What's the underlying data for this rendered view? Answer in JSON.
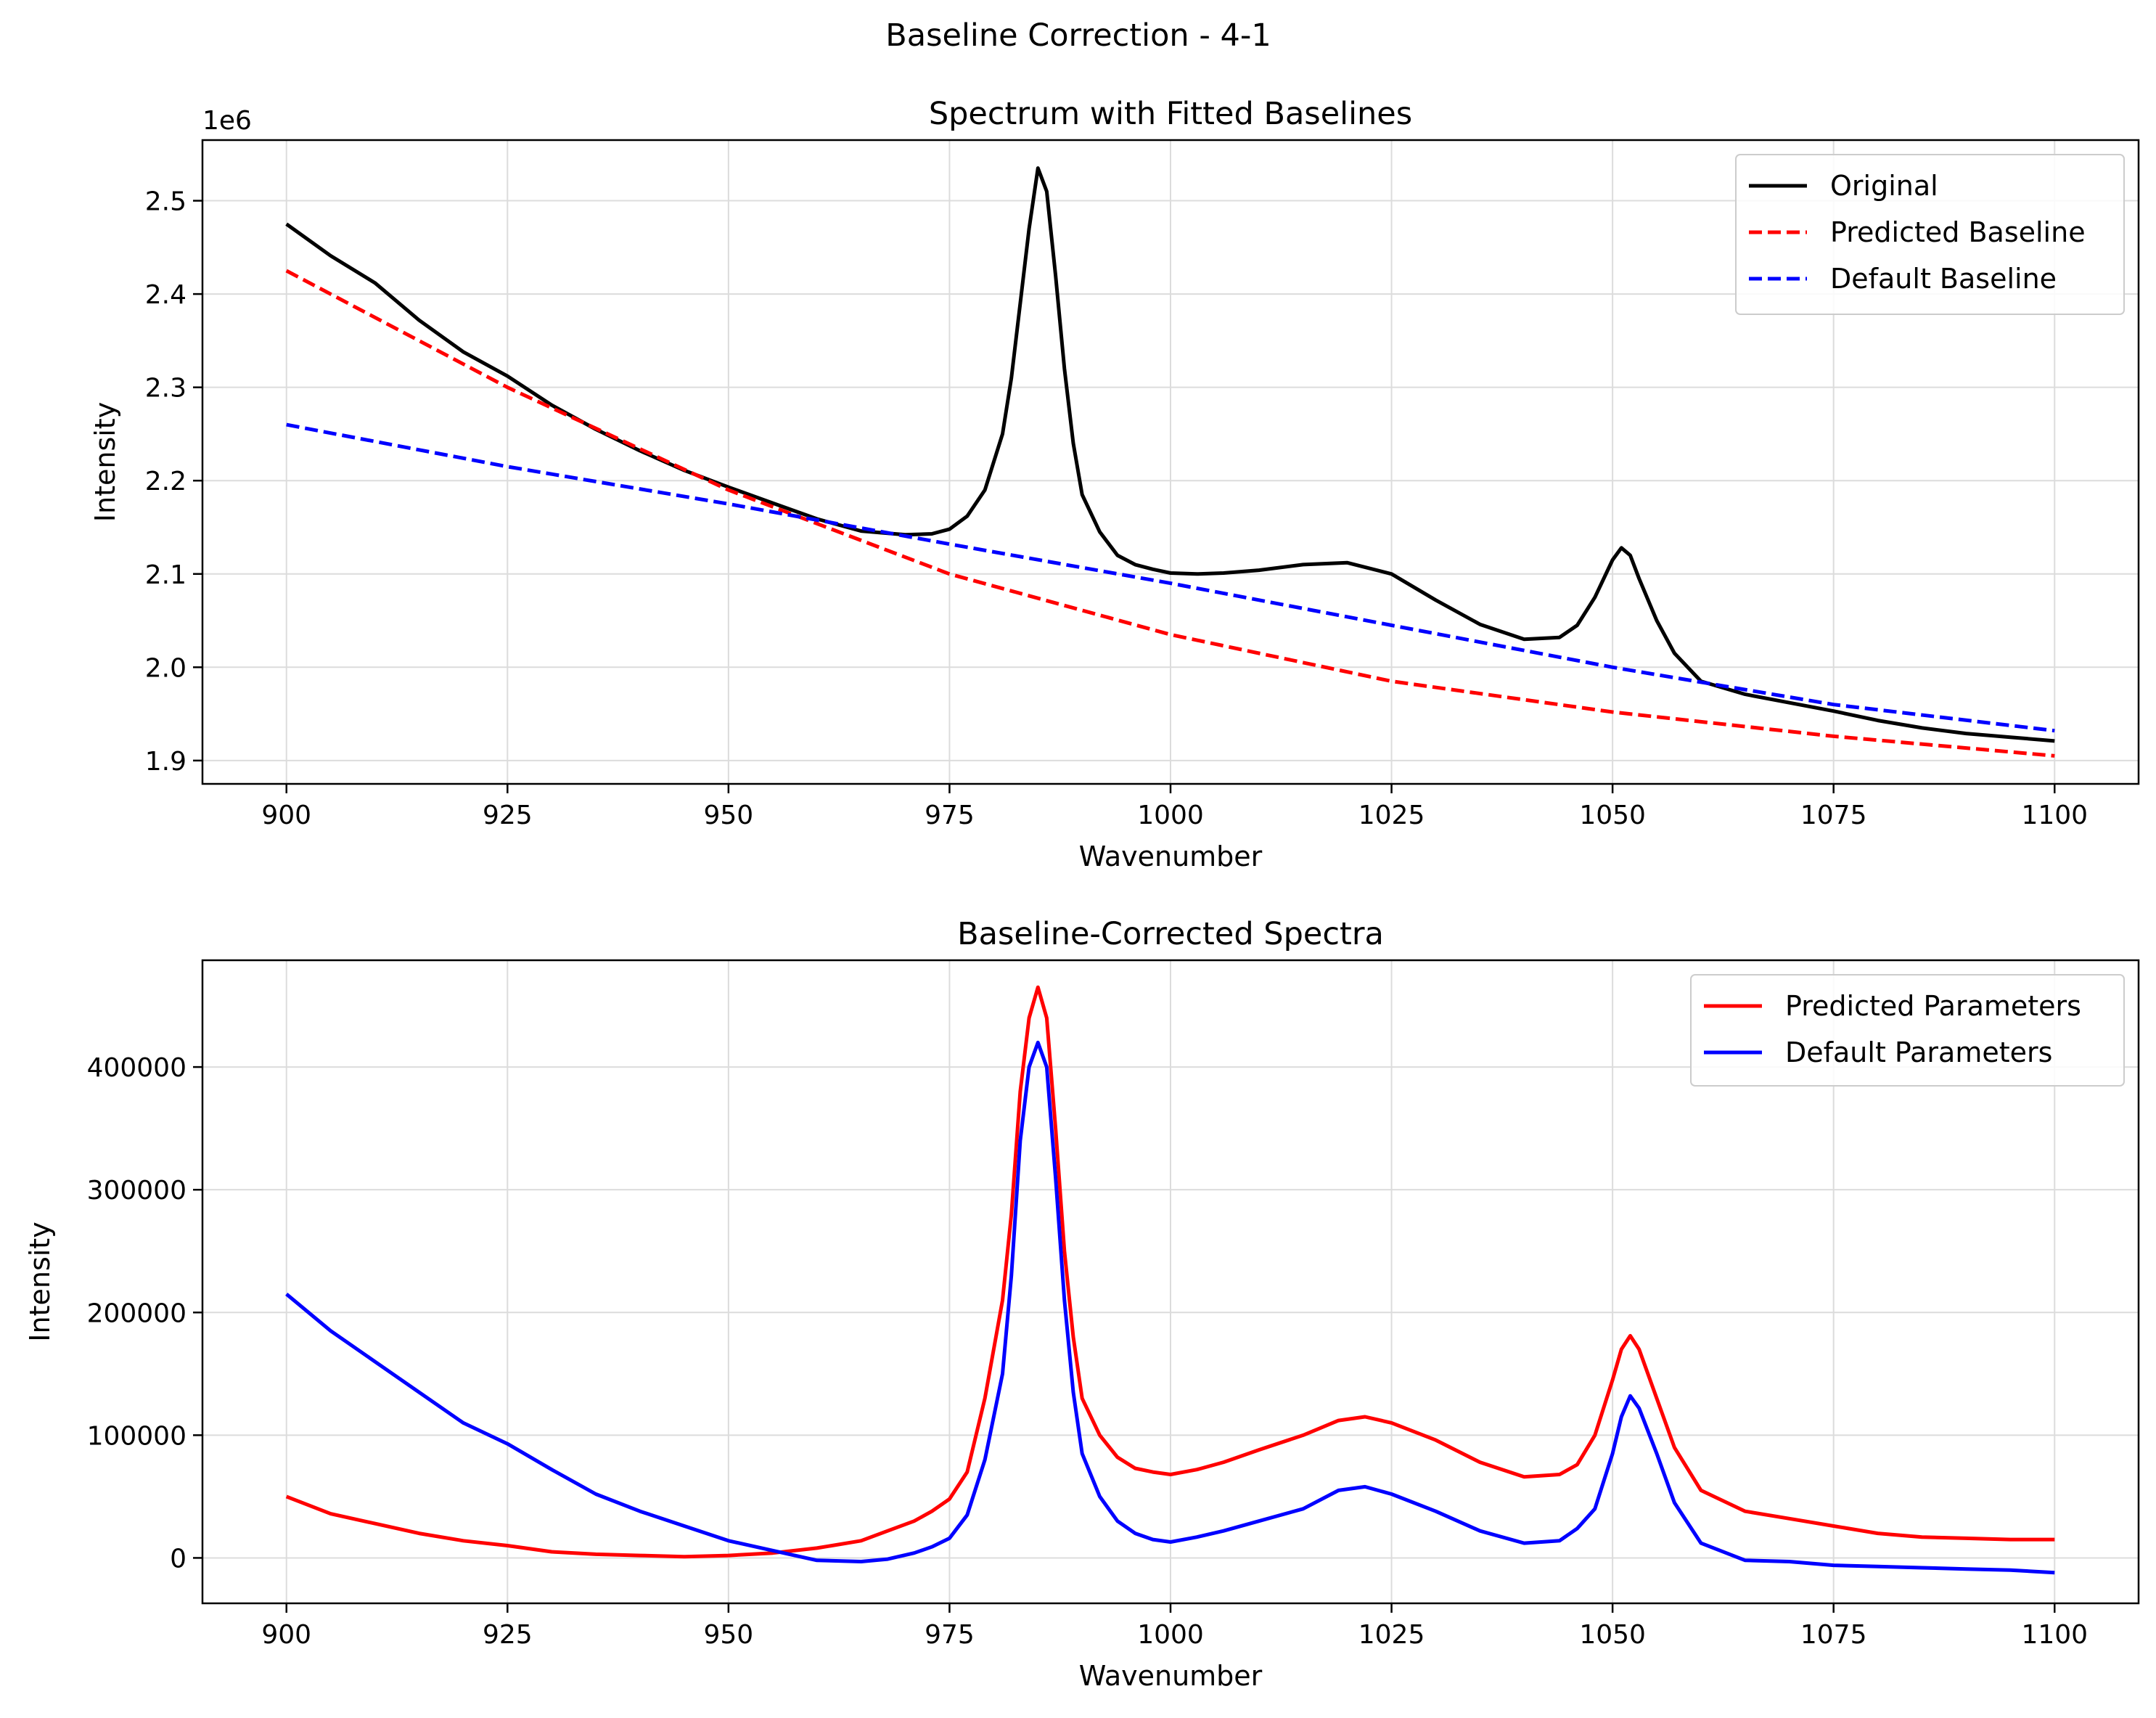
{
  "suptitle": "Baseline Correction - 4-1",
  "colors": {
    "original": "#000000",
    "predicted": "#ff0000",
    "default": "#0000ff",
    "grid": "#dcdcdc"
  },
  "chart_data": [
    {
      "type": "line",
      "title": "Spectrum with Fitted Baselines",
      "xlabel": "Wavenumber",
      "ylabel": "Intensity",
      "offset_label": "1e6",
      "xlim": [
        890.5,
        1109.5
      ],
      "ylim": [
        1.875,
        2.565
      ],
      "xticks": [
        900,
        925,
        950,
        975,
        1000,
        1025,
        1050,
        1075,
        1100
      ],
      "yticks": [
        1.9,
        2.0,
        2.1,
        2.2,
        2.3,
        2.4,
        2.5
      ],
      "ytick_labels": [
        "1.9",
        "2.0",
        "2.1",
        "2.2",
        "2.3",
        "2.4",
        "2.5"
      ],
      "grid": true,
      "legend_position": "upper right",
      "series": [
        {
          "name": "Original",
          "color": "#000000",
          "style": "solid",
          "x": [
            900,
            905,
            910,
            915,
            920,
            925,
            930,
            935,
            940,
            945,
            950,
            955,
            960,
            965,
            970,
            973,
            975,
            977,
            979,
            981,
            982,
            983,
            984,
            985,
            986,
            987,
            988,
            989,
            990,
            992,
            994,
            996,
            998,
            1000,
            1003,
            1006,
            1010,
            1015,
            1020,
            1025,
            1030,
            1035,
            1040,
            1044,
            1046,
            1048,
            1050,
            1051,
            1052,
            1053,
            1055,
            1057,
            1060,
            1065,
            1070,
            1075,
            1080,
            1085,
            1090,
            1095,
            1100
          ],
          "y": [
            2.475,
            2.441,
            2.412,
            2.372,
            2.338,
            2.312,
            2.281,
            2.255,
            2.232,
            2.211,
            2.193,
            2.176,
            2.159,
            2.146,
            2.142,
            2.143,
            2.148,
            2.162,
            2.19,
            2.25,
            2.31,
            2.39,
            2.47,
            2.535,
            2.51,
            2.42,
            2.32,
            2.24,
            2.185,
            2.145,
            2.12,
            2.11,
            2.105,
            2.101,
            2.1,
            2.101,
            2.104,
            2.11,
            2.112,
            2.1,
            2.072,
            2.046,
            2.03,
            2.032,
            2.045,
            2.075,
            2.115,
            2.128,
            2.12,
            2.095,
            2.05,
            2.015,
            1.985,
            1.971,
            1.962,
            1.953,
            1.943,
            1.935,
            1.929,
            1.925,
            1.921
          ]
        },
        {
          "name": "Predicted Baseline",
          "color": "#ff0000",
          "style": "dashed",
          "x": [
            900,
            925,
            950,
            975,
            1000,
            1025,
            1050,
            1075,
            1100
          ],
          "y": [
            2.425,
            2.3,
            2.19,
            2.1,
            2.035,
            1.985,
            1.952,
            1.926,
            1.905
          ]
        },
        {
          "name": "Default Baseline",
          "color": "#0000ff",
          "style": "dashed",
          "x": [
            900,
            925,
            950,
            975,
            1000,
            1025,
            1050,
            1075,
            1100
          ],
          "y": [
            2.26,
            2.215,
            2.175,
            2.132,
            2.09,
            2.045,
            2.0,
            1.96,
            1.932
          ]
        }
      ]
    },
    {
      "type": "line",
      "title": "Baseline-Corrected Spectra",
      "xlabel": "Wavenumber",
      "ylabel": "Intensity",
      "xlim": [
        890.5,
        1109.5
      ],
      "ylim": [
        -37000,
        487000
      ],
      "xticks": [
        900,
        925,
        950,
        975,
        1000,
        1025,
        1050,
        1075,
        1100
      ],
      "yticks": [
        0,
        100000,
        200000,
        300000,
        400000
      ],
      "ytick_labels": [
        "0",
        "100000",
        "200000",
        "300000",
        "400000"
      ],
      "grid": true,
      "legend_position": "upper right",
      "series": [
        {
          "name": "Predicted Parameters",
          "color": "#ff0000",
          "style": "solid",
          "x": [
            900,
            905,
            910,
            915,
            920,
            925,
            930,
            935,
            940,
            945,
            950,
            955,
            960,
            965,
            968,
            971,
            973,
            975,
            977,
            979,
            981,
            982,
            983,
            984,
            985,
            986,
            987,
            988,
            989,
            990,
            992,
            994,
            996,
            998,
            1000,
            1003,
            1006,
            1010,
            1015,
            1019,
            1022,
            1025,
            1030,
            1035,
            1040,
            1044,
            1046,
            1048,
            1050,
            1051,
            1052,
            1053,
            1055,
            1057,
            1060,
            1065,
            1070,
            1075,
            1080,
            1085,
            1090,
            1095,
            1100
          ],
          "y": [
            50000,
            36000,
            28000,
            20000,
            14000,
            10000,
            5000,
            3000,
            2000,
            1000,
            2000,
            4000,
            8000,
            14000,
            22000,
            30000,
            38000,
            48000,
            70000,
            130000,
            210000,
            280000,
            380000,
            440000,
            465000,
            440000,
            350000,
            250000,
            180000,
            130000,
            100000,
            82000,
            73000,
            70000,
            68000,
            72000,
            78000,
            88000,
            100000,
            112000,
            115000,
            110000,
            96000,
            78000,
            66000,
            68000,
            76000,
            100000,
            145000,
            170000,
            181000,
            170000,
            130000,
            90000,
            55000,
            38000,
            32000,
            26000,
            20000,
            17000,
            16000,
            15000,
            15000
          ]
        },
        {
          "name": "Default Parameters",
          "color": "#0000ff",
          "style": "solid",
          "x": [
            900,
            905,
            910,
            915,
            920,
            925,
            930,
            935,
            940,
            945,
            950,
            955,
            960,
            965,
            968,
            971,
            973,
            975,
            977,
            979,
            981,
            982,
            983,
            984,
            985,
            986,
            987,
            988,
            989,
            990,
            992,
            994,
            996,
            998,
            1000,
            1003,
            1006,
            1010,
            1015,
            1019,
            1022,
            1025,
            1030,
            1035,
            1040,
            1044,
            1046,
            1048,
            1050,
            1051,
            1052,
            1053,
            1055,
            1057,
            1060,
            1065,
            1070,
            1075,
            1080,
            1085,
            1090,
            1095,
            1100
          ],
          "y": [
            215000,
            185000,
            160000,
            135000,
            110000,
            93000,
            72000,
            52000,
            38000,
            26000,
            14000,
            6000,
            -2000,
            -3000,
            -1000,
            4000,
            9000,
            16000,
            35000,
            80000,
            150000,
            230000,
            340000,
            400000,
            420000,
            400000,
            310000,
            210000,
            135000,
            85000,
            50000,
            30000,
            20000,
            15000,
            13000,
            17000,
            22000,
            30000,
            40000,
            55000,
            58000,
            52000,
            38000,
            22000,
            12000,
            14000,
            24000,
            40000,
            85000,
            115000,
            132000,
            122000,
            85000,
            45000,
            12000,
            -2000,
            -3000,
            -6000,
            -7000,
            -8000,
            -9000,
            -10000,
            -12000
          ]
        }
      ]
    }
  ]
}
